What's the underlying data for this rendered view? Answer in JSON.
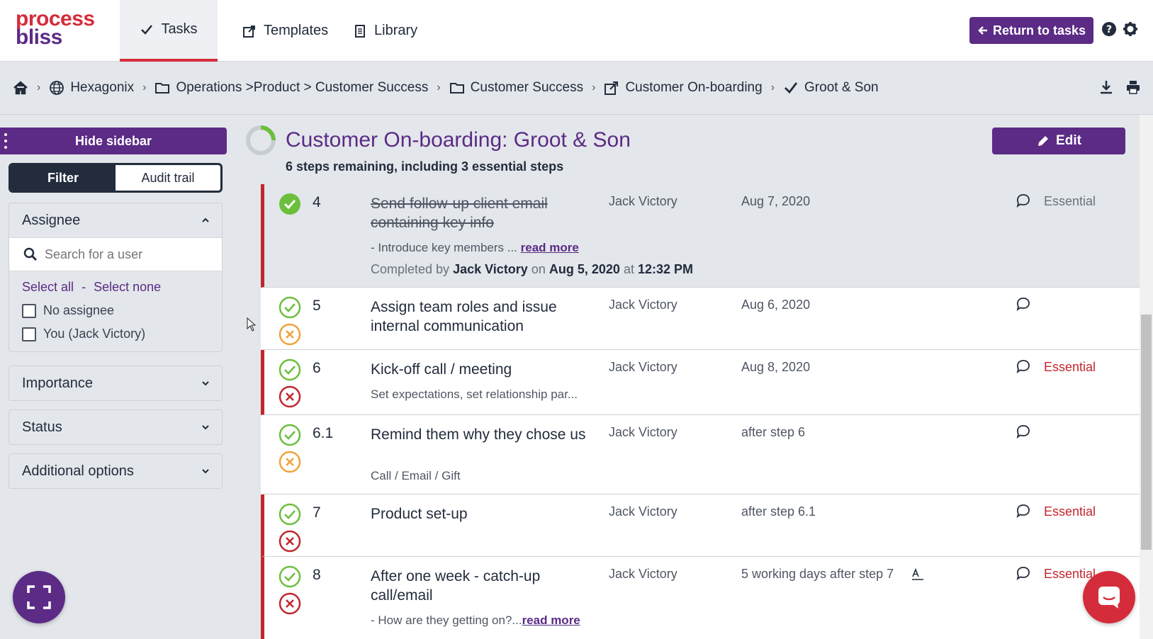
{
  "nav": {
    "logo_line1": "process",
    "logo_line2": "bliss",
    "tabs": [
      {
        "label": "Tasks",
        "icon": "check-icon",
        "active": true
      },
      {
        "label": "Templates",
        "icon": "template-export-icon",
        "active": false
      },
      {
        "label": "Library",
        "icon": "document-icon",
        "active": false
      }
    ],
    "return_button": "Return to tasks",
    "colors": {
      "brand_purple": "#5b2b86",
      "brand_red": "#d52c3c",
      "essential_red": "#c1272d",
      "success_green": "#6cbf3d",
      "skip_orange": "#f0a23c"
    }
  },
  "breadcrumb": {
    "items": [
      {
        "label": "",
        "icon": "home-icon"
      },
      {
        "label": "Hexagonix",
        "icon": "globe-icon"
      },
      {
        "label": "Operations >Product > Customer Success",
        "icon": "folder-icon"
      },
      {
        "label": "Customer Success",
        "icon": "folder-icon"
      },
      {
        "label": "Customer On-boarding",
        "icon": "template-export-icon"
      },
      {
        "label": "Groot & Son",
        "icon": "check-icon"
      }
    ]
  },
  "sidebar": {
    "hide_label": "Hide sidebar",
    "tabs": {
      "filter": "Filter",
      "audit": "Audit trail"
    },
    "assignee": {
      "title": "Assignee",
      "search_placeholder": "Search for a user",
      "select_all": "Select all",
      "separator": "-",
      "select_none": "Select none",
      "options": [
        "No assignee",
        "You (Jack Victory)"
      ]
    },
    "sections": [
      "Importance",
      "Status",
      "Additional options"
    ]
  },
  "task": {
    "title": "Customer On-boarding: Groot & Son",
    "subtitle": "6 steps remaining, including 3 essential steps",
    "edit_label": "Edit"
  },
  "steps": [
    {
      "num": "4",
      "name": "Send follow-up client email containing key info",
      "assignee": "Jack Victory",
      "due": "Aug 7, 2020",
      "tag": "Essential",
      "desc": "- Introduce key members ... ",
      "more": "read more",
      "completed": {
        "prefix": "Completed by",
        "by": "Jack Victory",
        "on": "on",
        "date": "Aug 5, 2020",
        "at": "at",
        "time": "12:32 PM"
      }
    },
    {
      "num": "5",
      "name": "Assign team roles and issue internal communication",
      "assignee": "Jack Victory",
      "due": "Aug 6, 2020",
      "tag": ""
    },
    {
      "num": "6",
      "name": "Kick-off call / meeting",
      "assignee": "Jack Victory",
      "due": "Aug 8, 2020",
      "tag": "Essential",
      "desc": "Set expectations, set relationship par..."
    },
    {
      "num": "6.1",
      "name": "Remind them why they chose us",
      "assignee": "Jack Victory",
      "due": "after step 6",
      "tag": "",
      "desc": "Call / Email / Gift"
    },
    {
      "num": "7",
      "name": "Product set-up",
      "assignee": "Jack Victory",
      "due": "after step 6.1",
      "tag": "Essential"
    },
    {
      "num": "8",
      "name": "After one week - catch-up call/email",
      "assignee": "Jack Victory",
      "due": "5 working days after step 7",
      "tag": "Essential",
      "desc": "- How are they getting on?...",
      "more": "read more"
    }
  ]
}
